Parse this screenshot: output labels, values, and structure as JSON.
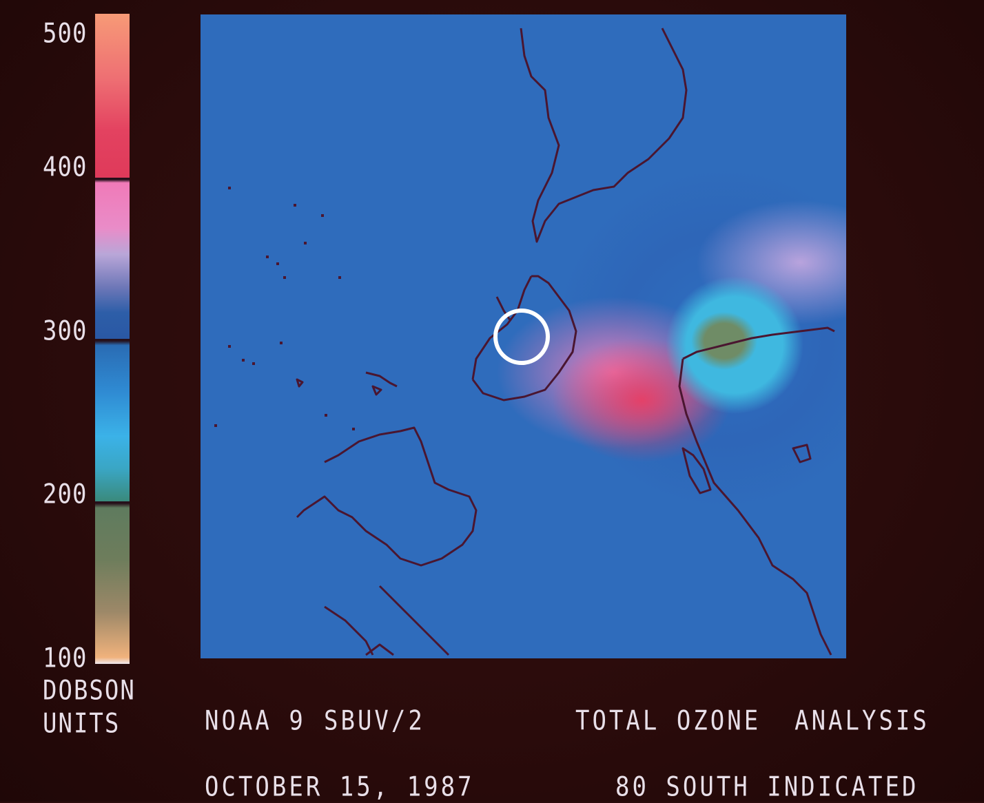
{
  "legend": {
    "ticks": [
      "500",
      "400",
      "300",
      "200",
      "100"
    ],
    "units_line1": "DOBSON",
    "units_line2": "UNITS"
  },
  "captions": {
    "satellite": "NOAA 9",
    "instrument": "SBUV/2",
    "title": "TOTAL OZONE  ANALYSIS",
    "date": "OCTOBER 15, 1987",
    "note": "80 SOUTH INDICATED"
  },
  "colors": {
    "background": "#2a0c0c",
    "coastline": "#4a1630",
    "marker_ring": "#ffffff"
  }
}
